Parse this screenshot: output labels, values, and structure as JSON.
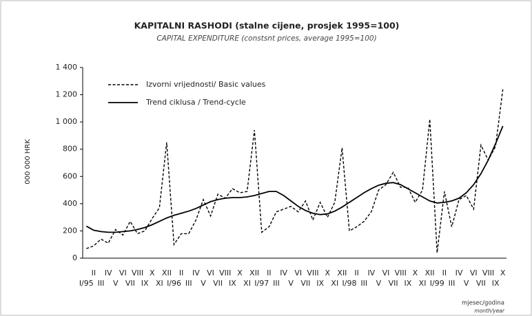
{
  "chart_data": {
    "type": "line",
    "title": "KAPITALNI RASHODI (stalne cijene, prosjek 1995=100)",
    "subtitle": "CAPITAL EXPENDITURE (constsnt prices, average 1995=100)",
    "ylabel": "000 000 HRK",
    "xlabel": "mjesec/godina",
    "xlabel_en": "month/year",
    "categories": [
      "I/95",
      "II",
      "III",
      "IV",
      "V",
      "VI",
      "VII",
      "VIII",
      "IX",
      "X",
      "XI",
      "XII",
      "I/96",
      "II",
      "III",
      "IV",
      "V",
      "VI",
      "VII",
      "VIII",
      "IX",
      "X",
      "XI",
      "XII",
      "I/97",
      "II",
      "III",
      "IV",
      "V",
      "VI",
      "VII",
      "VIII",
      "IX",
      "X",
      "XI",
      "XII",
      "I/98",
      "II",
      "III",
      "IV",
      "V",
      "VI",
      "VII",
      "VIII",
      "IX",
      "X",
      "XI",
      "XII",
      "I/99",
      "II",
      "III",
      "IV",
      "V",
      "VI",
      "VII",
      "VIII",
      "IX",
      "X"
    ],
    "series": [
      {
        "name": "Izvorni vrijednosti/ Basic values",
        "color": "#000000",
        "dashed": true,
        "values": [
          70,
          90,
          140,
          110,
          210,
          170,
          270,
          180,
          200,
          290,
          370,
          850,
          100,
          180,
          180,
          280,
          430,
          310,
          470,
          440,
          510,
          480,
          490,
          940,
          190,
          230,
          340,
          360,
          380,
          340,
          420,
          280,
          410,
          300,
          410,
          810,
          200,
          230,
          270,
          340,
          500,
          540,
          630,
          520,
          520,
          410,
          500,
          1020,
          40,
          490,
          230,
          430,
          460,
          360,
          830,
          720,
          820,
          1240
        ]
      },
      {
        "name": "Trend ciklusa / Trend-cycle",
        "color": "#000000",
        "dashed": false,
        "values": [
          235,
          205,
          195,
          190,
          190,
          195,
          200,
          210,
          225,
          245,
          270,
          295,
          315,
          330,
          345,
          365,
          390,
          415,
          430,
          440,
          445,
          445,
          450,
          460,
          475,
          490,
          490,
          460,
          420,
          380,
          350,
          330,
          320,
          325,
          345,
          375,
          410,
          445,
          480,
          510,
          535,
          550,
          555,
          540,
          510,
          480,
          450,
          420,
          405,
          410,
          420,
          440,
          480,
          540,
          620,
          720,
          840,
          970
        ]
      }
    ],
    "ylim": [
      0,
      1400
    ],
    "yticks": [
      0,
      200,
      400,
      600,
      800,
      {
        "value": 1000,
        "label": "1 000"
      },
      {
        "value": 1200,
        "label": "1 200"
      },
      {
        "value": 1400,
        "label": "1 400"
      }
    ],
    "grid": false,
    "legend": "top-left"
  }
}
